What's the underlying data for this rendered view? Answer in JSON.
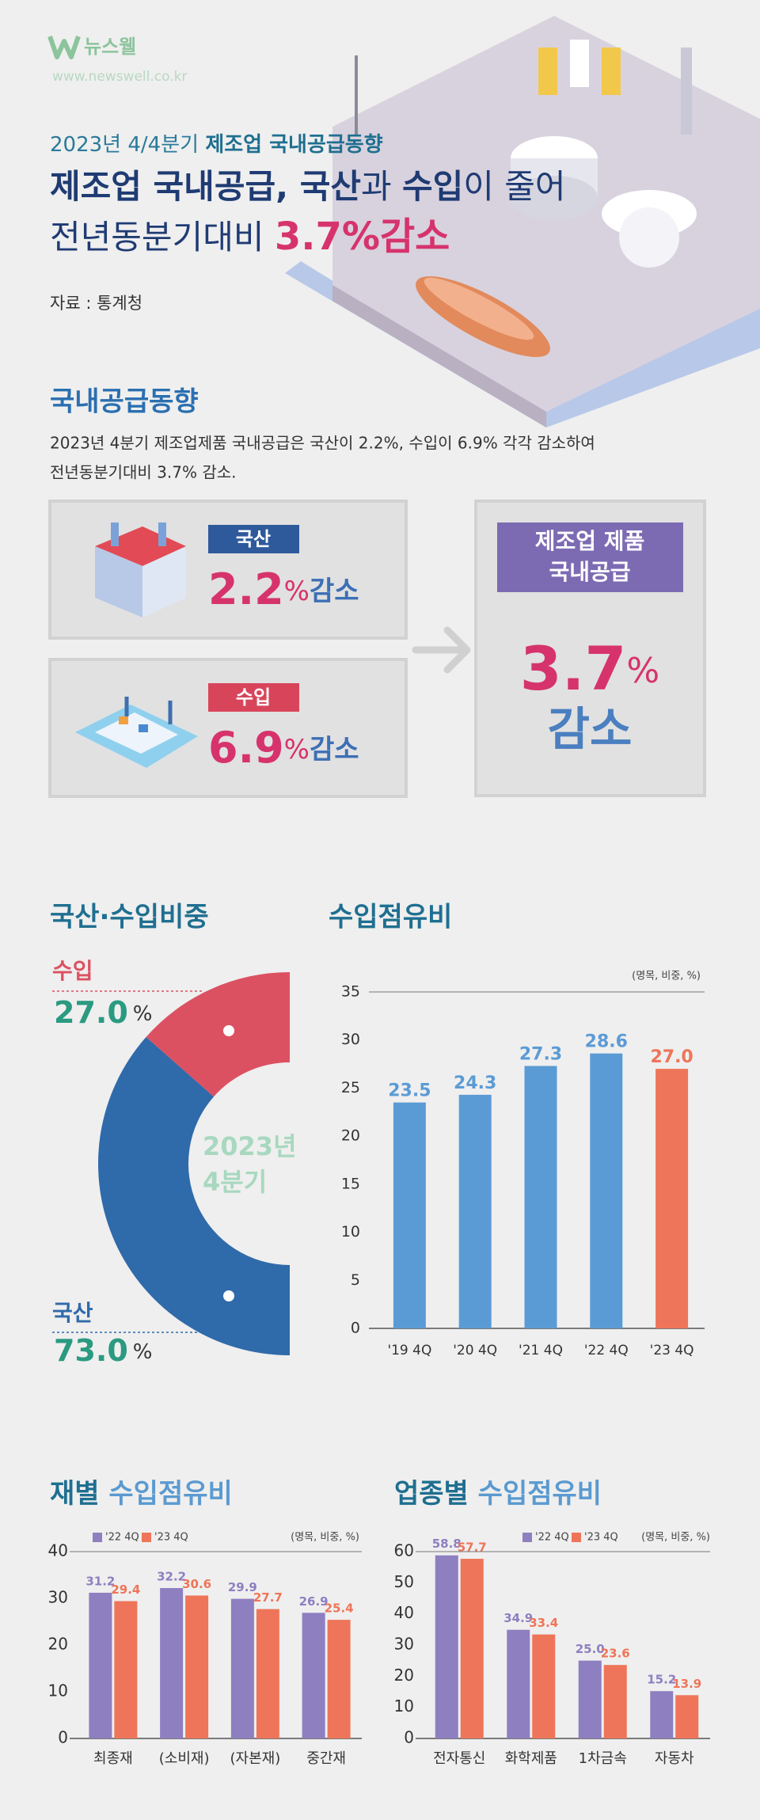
{
  "header": {
    "logo": "뉴스웰",
    "url": "www.newswell.co.kr",
    "kicker": [
      "2023년 4/4분기 ",
      "제조업 국내공급동향"
    ],
    "title": [
      "제조업 ",
      "국내공급",
      ", ",
      "국산",
      "과 ",
      "수입",
      "이 줄어"
    ],
    "subtitle": [
      "전년동분기대비 ",
      "3.7%감소"
    ],
    "source": "자료 : 통계청"
  },
  "summary": {
    "title": "국내공급동향",
    "lines": [
      "2023년 4분기 제조업제품 국내공급은 국산이 2.2%, 수입이 6.9% 각각 감소하여",
      "전년동분기대비 3.7% 감소."
    ],
    "items": [
      {
        "label": "국산",
        "value": "2.2",
        "unit": "%",
        "change": "감소"
      },
      {
        "label": "수입",
        "value": "6.9",
        "unit": "%",
        "change": "감소"
      }
    ],
    "total": {
      "label": [
        "제조업 제품",
        "국내공급"
      ],
      "value": "3.7",
      "unit": "%",
      "change": "감소"
    }
  },
  "chart_data": [
    {
      "type": "pie",
      "title": "국산·수입비중",
      "center_label": [
        "2023년",
        "4분기"
      ],
      "categories": [
        "수입",
        "국산"
      ],
      "values": [
        27.0,
        73.0
      ],
      "value_labels": [
        "27.0",
        "73.0"
      ],
      "unit": "%",
      "colors": [
        "#dc5162",
        "#2f6aaa"
      ]
    },
    {
      "type": "bar",
      "title": "수입점유비",
      "note": "(명목, 비중, %)",
      "categories": [
        "'19 4Q",
        "'20 4Q",
        "'21 4Q",
        "'22 4Q",
        "'23 4Q"
      ],
      "values": [
        23.5,
        24.3,
        27.3,
        28.6,
        27.0
      ],
      "value_labels": [
        "23.5",
        "24.3",
        "27.3",
        "28.6",
        "27.0"
      ],
      "colors": [
        "#5b9bd5",
        "#5b9bd5",
        "#5b9bd5",
        "#5b9bd5",
        "#ee7559"
      ],
      "ylim": [
        0,
        35
      ],
      "yticks": [
        0,
        5,
        10,
        15,
        20,
        25,
        30,
        35
      ],
      "grid": false
    },
    {
      "type": "grouped-bar",
      "title": [
        "재별",
        " 수입점유비"
      ],
      "note": "(명목, 비중, %)",
      "categories": [
        "최종재",
        "(소비재)",
        "(자본재)",
        "중간재"
      ],
      "series": [
        {
          "name": "'22 4Q",
          "color": "#8e7fc0",
          "values": [
            31.2,
            32.2,
            29.9,
            26.9
          ],
          "value_labels": [
            "31.2",
            "32.2",
            "29.9",
            "26.9"
          ]
        },
        {
          "name": "'23 4Q",
          "color": "#ee7559",
          "values": [
            29.4,
            30.6,
            27.7,
            25.4
          ],
          "value_labels": [
            "29.4",
            "30.6",
            "27.7",
            "25.4"
          ]
        }
      ],
      "ylim": [
        0,
        40
      ],
      "yticks": [
        0,
        10,
        20,
        30,
        40
      ],
      "grid": false
    },
    {
      "type": "grouped-bar",
      "title": [
        "업종별",
        " 수입점유비"
      ],
      "note": "(명목, 비중, %)",
      "categories": [
        "전자통신",
        "화학제품",
        "1차금속",
        "자동차"
      ],
      "series": [
        {
          "name": "'22 4Q",
          "color": "#8e7fc0",
          "values": [
            58.8,
            34.9,
            25.0,
            15.2
          ],
          "value_labels": [
            "58.8",
            "34.9",
            "25.0",
            "15.2"
          ]
        },
        {
          "name": "'23 4Q",
          "color": "#ee7559",
          "values": [
            57.7,
            33.4,
            23.6,
            13.9
          ],
          "value_labels": [
            "57.7",
            "33.4",
            "23.6",
            "13.9"
          ]
        }
      ],
      "ylim": [
        0,
        60
      ],
      "yticks": [
        0,
        10,
        20,
        30,
        40,
        50,
        60
      ],
      "grid": false
    }
  ]
}
